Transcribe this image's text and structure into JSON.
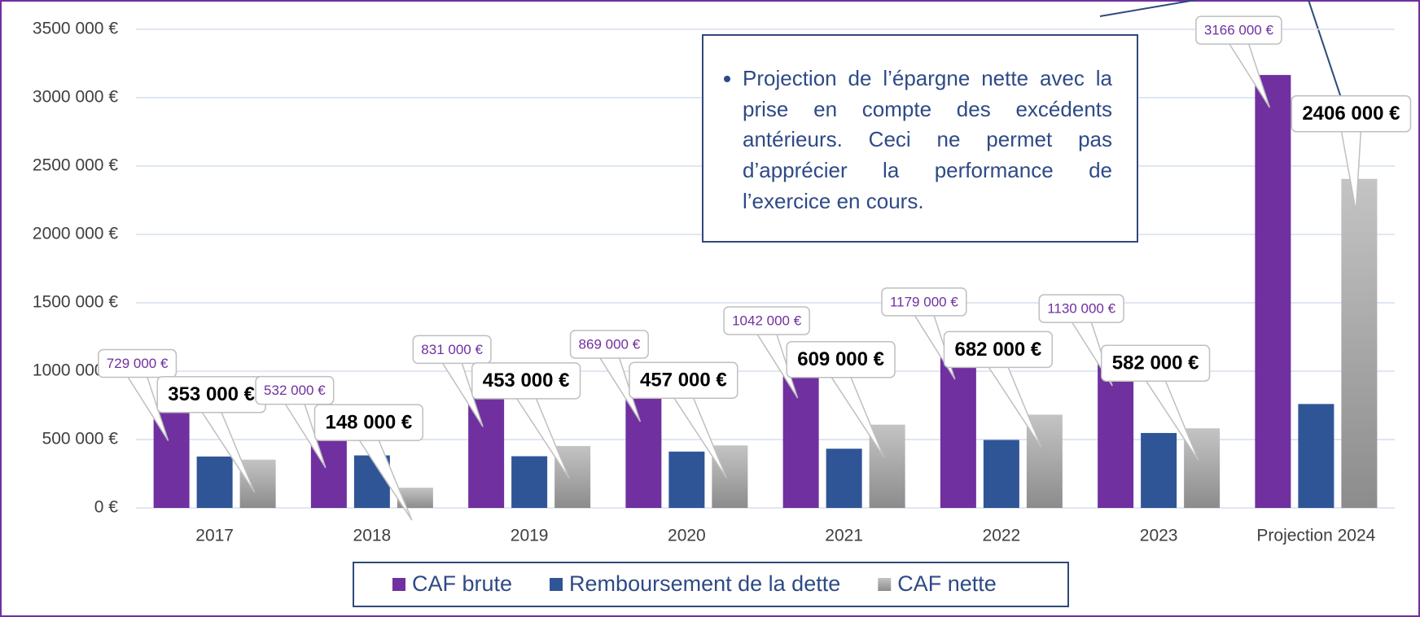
{
  "chart_data": {
    "type": "bar",
    "categories": [
      "2017",
      "2018",
      "2019",
      "2020",
      "2021",
      "2022",
      "2023",
      "Projection 2024"
    ],
    "series": [
      {
        "name": "CAF brute",
        "color": "#7030a0",
        "values": [
          729000,
          532000,
          831000,
          869000,
          1042000,
          1179000,
          1130000,
          3166000
        ],
        "value_labels": [
          "729 000 €",
          "532 000 €",
          "831 000 €",
          "869 000 €",
          "1042 000 €",
          "1179 000 €",
          "1130 000 €",
          "3166 000 €"
        ]
      },
      {
        "name": "Remboursement de la dette",
        "color": "#2f5597",
        "values": [
          376000,
          384000,
          378000,
          412000,
          433000,
          497000,
          548000,
          760000
        ]
      },
      {
        "name": "CAF nette",
        "color": "#a6a6a6",
        "values": [
          353000,
          148000,
          453000,
          457000,
          609000,
          682000,
          582000,
          2406000
        ],
        "value_labels": [
          "353 000 €",
          "148 000 €",
          "453 000 €",
          "457 000 €",
          "609 000 €",
          "682 000 €",
          "582 000 €",
          "2406 000 €"
        ]
      }
    ],
    "ylim": [
      0,
      3500000
    ],
    "yticks": [
      {
        "value": 0,
        "label": "0 €"
      },
      {
        "value": 500000,
        "label": "500 000 €"
      },
      {
        "value": 1000000,
        "label": "1000 000 €"
      },
      {
        "value": 1500000,
        "label": "1500 000 €"
      },
      {
        "value": 2000000,
        "label": "2000 000 €"
      },
      {
        "value": 2500000,
        "label": "2500 000 €"
      },
      {
        "value": 3000000,
        "label": "3000 000 €"
      },
      {
        "value": 3500000,
        "label": "3500 000 €"
      }
    ],
    "grid": true,
    "legend": "bottom",
    "annotation": "Projection de l’épargne nette avec la prise en compte des excédents antérieurs. Ceci ne permet pas d’apprécier la performance de l’exercice en cours."
  }
}
